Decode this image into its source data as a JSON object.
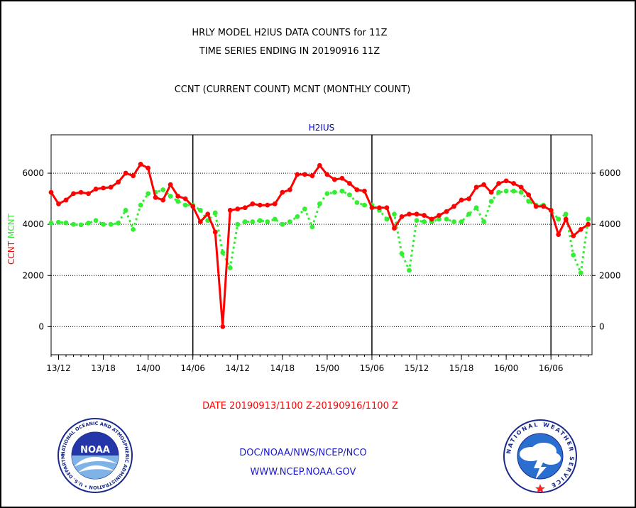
{
  "header": {
    "line1": "HRLY MODEL H2IUS DATA COUNTS for 11Z",
    "line2": "TIME SERIES ENDING IN 20190916 11Z",
    "line3": "CCNT (CURRENT COUNT) MCNT (MONTHLY COUNT)"
  },
  "colors": {
    "ccnt": "#ff0000",
    "mcnt": "#33ee33",
    "title": "#0000cc",
    "footer": "#1a1acc"
  },
  "footer": {
    "date_range": "DATE 20190913/1100 Z-20190916/1100 Z",
    "org": "DOC/NOAA/NWS/NCEP/NCO",
    "url": "WWW.NCEP.NOAA.GOV"
  },
  "logos": {
    "noaa_text": "NOAA",
    "noaa_ring": "NATIONAL OCEANIC AND ATMOSPHERIC ADMINISTRATION • U.S. DEPARTMENT OF COMMERCE •",
    "nws_ring": "NATIONAL WEATHER SERVICE"
  },
  "chart_data": {
    "type": "line",
    "title": "H2IUS",
    "ylabel_left": [
      "CCNT",
      "MCNT"
    ],
    "ylim": [
      -1100,
      7500
    ],
    "yticks": [
      0,
      2000,
      4000,
      6000
    ],
    "xlim": [
      0,
      72.5
    ],
    "xticks": [
      {
        "x": 1,
        "label": "13/12"
      },
      {
        "x": 7,
        "label": "13/18"
      },
      {
        "x": 13,
        "label": "14/00"
      },
      {
        "x": 19,
        "label": "14/06"
      },
      {
        "x": 25,
        "label": "14/12"
      },
      {
        "x": 31,
        "label": "14/18"
      },
      {
        "x": 37,
        "label": "15/00"
      },
      {
        "x": 43,
        "label": "15/06"
      },
      {
        "x": 49,
        "label": "15/12"
      },
      {
        "x": 55,
        "label": "15/18"
      },
      {
        "x": 61,
        "label": "16/00"
      },
      {
        "x": 67,
        "label": "16/06"
      }
    ],
    "day_separators": [
      19,
      43,
      67
    ],
    "grid": "horizontal dotted",
    "series": [
      {
        "name": "CCNT",
        "style": "solid",
        "x": [
          0,
          1,
          2,
          3,
          4,
          5,
          6,
          7,
          8,
          9,
          10,
          11,
          12,
          13,
          14,
          15,
          16,
          17,
          18,
          19,
          20,
          21,
          22,
          23,
          24,
          25,
          26,
          27,
          28,
          29,
          30,
          31,
          32,
          33,
          34,
          35,
          36,
          37,
          38,
          39,
          40,
          41,
          42,
          43,
          44,
          45,
          46,
          47,
          48,
          49,
          50,
          51,
          52,
          53,
          54,
          55,
          56,
          57,
          58,
          59,
          60,
          61,
          62,
          63,
          64,
          65,
          66,
          67,
          68,
          69,
          70,
          71,
          72
        ],
        "values": [
          5250,
          4800,
          4950,
          5200,
          5250,
          5200,
          5380,
          5420,
          5450,
          5650,
          6000,
          5900,
          6350,
          6200,
          5050,
          4950,
          5550,
          5100,
          5000,
          4700,
          4100,
          4400,
          3700,
          0,
          4550,
          4600,
          4650,
          4800,
          4750,
          4750,
          4800,
          5250,
          5350,
          5950,
          5950,
          5900,
          6300,
          5950,
          5750,
          5800,
          5600,
          5350,
          5300,
          4650,
          4650,
          4650,
          3850,
          4300,
          4400,
          4400,
          4350,
          4200,
          4350,
          4500,
          4700,
          4950,
          5000,
          5450,
          5550,
          5250,
          5600,
          5700,
          5600,
          5450,
          5150,
          4700,
          4700,
          4550,
          3600,
          4200,
          3550,
          3800,
          4000
        ]
      },
      {
        "name": "MCNT",
        "style": "dotted",
        "x": [
          0,
          1,
          2,
          3,
          4,
          5,
          6,
          7,
          8,
          9,
          10,
          11,
          12,
          13,
          14,
          15,
          16,
          17,
          18,
          19,
          20,
          21,
          22,
          23,
          24,
          25,
          26,
          27,
          28,
          29,
          30,
          31,
          32,
          33,
          34,
          35,
          36,
          37,
          38,
          39,
          40,
          41,
          42,
          43,
          44,
          45,
          46,
          47,
          48,
          49,
          50,
          51,
          52,
          53,
          54,
          55,
          56,
          57,
          58,
          59,
          60,
          61,
          62,
          63,
          64,
          65,
          66,
          67,
          68,
          69,
          70,
          71,
          72
        ],
        "values": [
          4050,
          4080,
          4060,
          4000,
          3980,
          4050,
          4150,
          4000,
          4000,
          4050,
          4550,
          3800,
          4750,
          5200,
          5250,
          5350,
          5100,
          4900,
          4750,
          4750,
          4550,
          4150,
          4450,
          2900,
          2300,
          4000,
          4100,
          4100,
          4150,
          4100,
          4200,
          4000,
          4100,
          4300,
          4600,
          3900,
          4800,
          5200,
          5250,
          5300,
          5150,
          4850,
          4750,
          4750,
          4550,
          4200,
          4400,
          2850,
          2200,
          4150,
          4100,
          4100,
          4200,
          4200,
          4100,
          4100,
          4400,
          4650,
          4100,
          4900,
          5250,
          5300,
          5300,
          5250,
          4900,
          4750,
          4750,
          4550,
          4200,
          4400,
          2800,
          2100,
          4200
        ]
      }
    ]
  }
}
